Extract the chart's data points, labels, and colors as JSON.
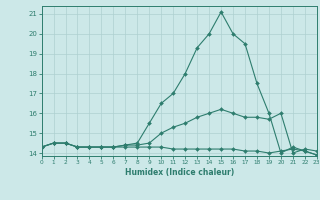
{
  "x_values": [
    0,
    1,
    2,
    3,
    4,
    5,
    6,
    7,
    8,
    9,
    10,
    11,
    12,
    13,
    14,
    15,
    16,
    17,
    18,
    19,
    20,
    21,
    22,
    23
  ],
  "line_flat": [
    14.3,
    14.5,
    14.5,
    14.3,
    14.3,
    14.3,
    14.3,
    14.3,
    14.3,
    14.3,
    14.3,
    14.2,
    14.2,
    14.2,
    14.2,
    14.2,
    14.2,
    14.1,
    14.1,
    14.0,
    14.1,
    14.2,
    14.1,
    13.9
  ],
  "line_mid": [
    14.3,
    14.5,
    14.5,
    14.3,
    14.3,
    14.3,
    14.3,
    14.4,
    14.4,
    14.5,
    15.0,
    15.3,
    15.5,
    15.8,
    16.0,
    16.2,
    16.0,
    15.8,
    15.8,
    15.7,
    16.0,
    14.0,
    14.2,
    14.1
  ],
  "line_peak": [
    14.3,
    14.5,
    14.5,
    14.3,
    14.3,
    14.3,
    14.3,
    14.4,
    14.5,
    15.5,
    16.5,
    17.0,
    18.0,
    19.3,
    20.0,
    21.1,
    20.0,
    19.5,
    17.5,
    16.0,
    14.0,
    14.3,
    14.1,
    13.9
  ],
  "xlim": [
    0,
    23
  ],
  "ylim": [
    13.85,
    21.4
  ],
  "yticks": [
    14,
    15,
    16,
    17,
    18,
    19,
    20,
    21
  ],
  "xticks": [
    0,
    1,
    2,
    3,
    4,
    5,
    6,
    7,
    8,
    9,
    10,
    11,
    12,
    13,
    14,
    15,
    16,
    17,
    18,
    19,
    20,
    21,
    22,
    23
  ],
  "xlabel": "Humidex (Indice chaleur)",
  "line_color": "#2e7d6e",
  "bg_color": "#cce8e8",
  "grid_color": "#aed0d0"
}
